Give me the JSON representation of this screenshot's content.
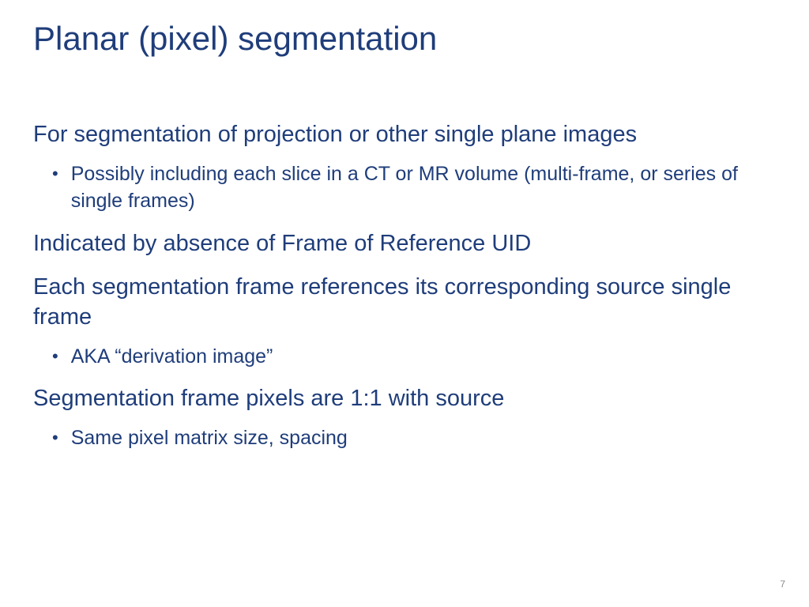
{
  "slide": {
    "title": "Planar (pixel) segmentation",
    "points": [
      {
        "main": "For segmentation of projection or other single plane images",
        "bullets": [
          "Possibly including each slice in a CT or MR volume (multi-frame, or series of single frames)"
        ]
      },
      {
        "main": "Indicated by absence of Frame of Reference UID",
        "bullets": []
      },
      {
        "main": "Each segmentation frame references its corresponding source single frame",
        "bullets": [
          "AKA “derivation image”"
        ]
      },
      {
        "main": "Segmentation frame pixels are 1:1 with source",
        "bullets": [
          "Same pixel matrix size, spacing"
        ]
      }
    ],
    "page_number": "7"
  },
  "styling": {
    "title_color": "#1f3d7a",
    "body_color": "#1f3d7a",
    "background_color": "#ffffff",
    "title_fontsize": 42,
    "main_point_fontsize": 29,
    "bullet_fontsize": 25,
    "page_number_fontsize": 12,
    "page_number_color": "#8a8a8a",
    "font_family": "Arial, Helvetica, sans-serif",
    "slide_width": 1024,
    "slide_height": 768
  }
}
